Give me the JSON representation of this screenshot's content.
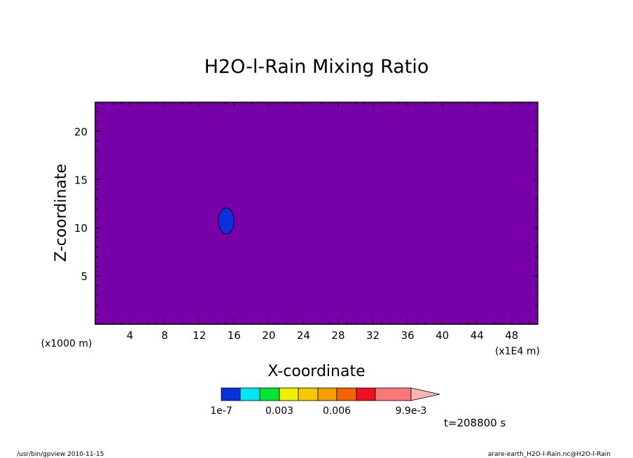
{
  "chart_data": {
    "type": "heatmap",
    "title": "H2O-l-Rain Mixing Ratio",
    "xlabel": "X-coordinate",
    "ylabel": "Z-coordinate",
    "x_unit": "(x1E4 m)",
    "y_unit": "(x1000 m)",
    "xlim": [
      0,
      51
    ],
    "ylim": [
      0,
      23
    ],
    "xticks": [
      4,
      8,
      12,
      16,
      20,
      24,
      28,
      32,
      36,
      40,
      44,
      48
    ],
    "yticks": [
      5,
      10,
      15,
      20
    ],
    "field": {
      "background_color": "#7800a8",
      "features": [
        {
          "level": "1e-7 to 0.001",
          "color": "#0a2fdc",
          "center_x": 15.1,
          "center_z": 10.7,
          "radius_x": 0.9,
          "radius_z": 1.35
        }
      ]
    },
    "colorbar": {
      "colors": [
        "#0a2fdc",
        "#00e6f0",
        "#00e632",
        "#f0f000",
        "#f5c800",
        "#f5a000",
        "#f56400",
        "#f00f1e",
        "#fa7878",
        "#fab4b4"
      ],
      "extend": "max",
      "tick_labels": [
        "1e-7",
        "0.003",
        "0.006",
        "9.9e-3"
      ],
      "tick_bounds": [
        0,
        3,
        6,
        9
      ]
    },
    "time_label": "t=208800 s"
  },
  "footer": {
    "left": "/usr/bin/gpview   2010-11-15",
    "right": "arare-earth_H2O-l-Rain.nc@H2O-l-Rain"
  }
}
